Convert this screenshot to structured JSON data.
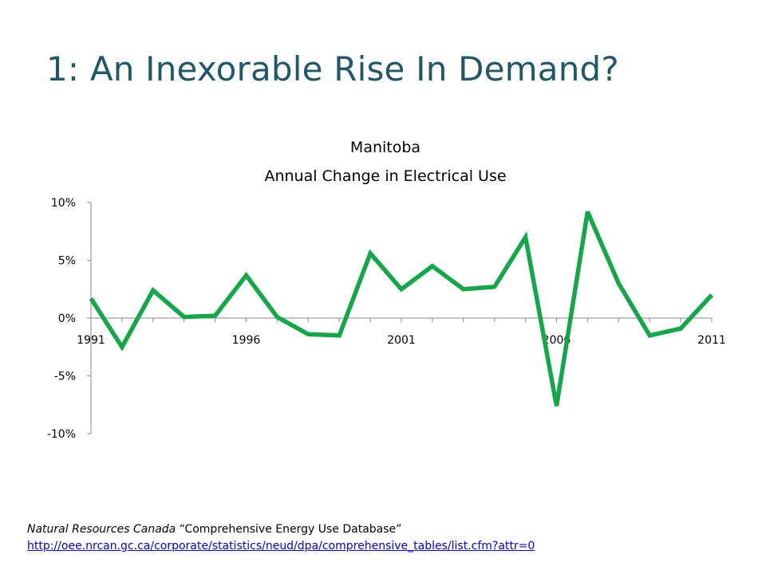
{
  "slide": {
    "title": "1: An Inexorable Rise In Demand?"
  },
  "source": {
    "org": "Natural Resources Canada",
    "database": "“Comprehensive Energy Use Database”",
    "url": "http://oee.nrcan.gc.ca/corporate/statistics/neud/dpa/comprehensive_tables/list.cfm?attr=0"
  },
  "colors": {
    "line": "#12a84a",
    "axis": "#888888",
    "title": "#215868"
  },
  "chart_data": {
    "type": "line",
    "title_lines": [
      "Manitoba",
      "Annual Change in Electrical Use"
    ],
    "xlabel": "",
    "ylabel": "",
    "ylim": [
      -10,
      10
    ],
    "xlim": [
      1991,
      2011
    ],
    "grid": false,
    "y_ticks": [
      10,
      5,
      0,
      -5,
      -10
    ],
    "y_tick_labels": [
      "10%",
      "5%",
      "0%",
      "-5%",
      "-10%"
    ],
    "x_ticks": [
      1991,
      1996,
      2001,
      2006,
      2011
    ],
    "x_tick_labels": [
      "1991",
      "1996",
      "2001",
      "2006",
      "2011"
    ],
    "series": [
      {
        "x": [
          1991,
          1992,
          1993,
          1994,
          1995,
          1996,
          1997,
          1998,
          1999,
          2000,
          2001,
          2002,
          2003,
          2004,
          2005,
          2006,
          2007,
          2008,
          2009,
          2010,
          2011
        ],
        "values": [
          1.7,
          -2.5,
          2.4,
          0.1,
          0.2,
          3.7,
          0.1,
          -1.4,
          -1.5,
          5.6,
          2.5,
          4.5,
          2.5,
          2.7,
          7.0,
          -7.6,
          9.2,
          3.0,
          -1.5,
          -0.9,
          2.0
        ]
      }
    ]
  }
}
